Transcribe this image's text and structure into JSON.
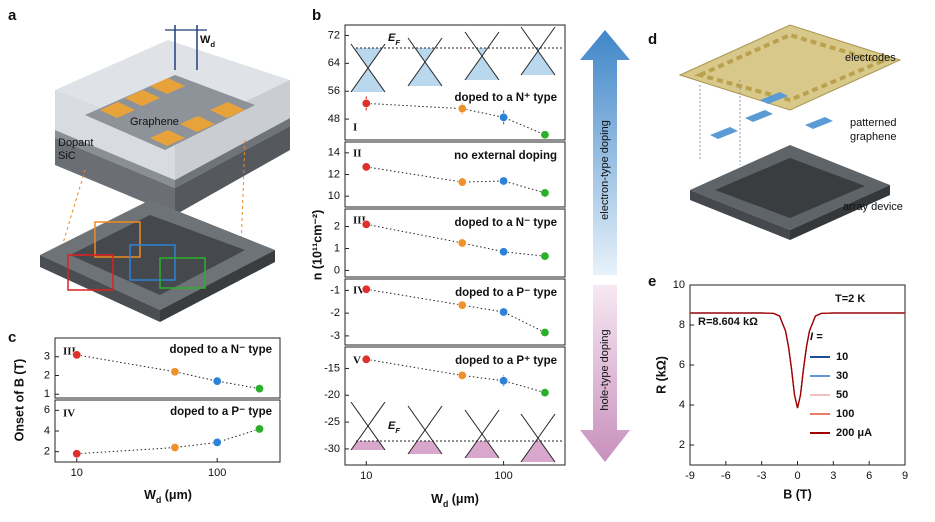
{
  "figure": {
    "panel_letters": [
      "a",
      "b",
      "c",
      "d",
      "e"
    ],
    "a": {
      "width_label": [
        "W",
        "d"
      ],
      "layer_labels": [
        "Dopant",
        "SiC"
      ],
      "graphene_label": "Graphene"
    },
    "b": {
      "y_label": "n (10¹¹cm⁻²)",
      "x_label": [
        "W",
        "d",
        " (μm)"
      ],
      "fermi_label": [
        "E",
        "F"
      ],
      "arrow_labels": [
        "electron-type doping",
        "hole-type doping"
      ]
    },
    "c": {
      "y_label": "Onset of B (T)",
      "x_label": [
        "W",
        "d",
        " (μm)"
      ]
    },
    "d": {
      "electrodes": "electrodes",
      "patterned": [
        "patterned",
        "graphene"
      ],
      "array": "array device"
    }
  },
  "chart_data": [
    {
      "type": "scatter",
      "label": "I",
      "annotation": "doped to a N⁺ type",
      "x": [
        10,
        50,
        100,
        200
      ],
      "values": [
        52.5,
        51,
        48.5,
        43.5
      ],
      "errors": [
        2,
        1.5,
        2,
        0.5
      ],
      "point_colors": [
        "#e0302c",
        "#f0902c",
        "#2c82d8",
        "#2cb02c"
      ],
      "xscale": "log",
      "xlim": [
        7,
        280
      ],
      "ylim": [
        42,
        75
      ],
      "yticks": [
        48,
        56,
        64,
        72
      ]
    },
    {
      "type": "scatter",
      "label": "II",
      "annotation": "no external doping",
      "x": [
        10,
        50,
        100,
        200
      ],
      "values": [
        12.7,
        11.3,
        11.4,
        10.3
      ],
      "errors": [
        0.15,
        0.15,
        0.3,
        0.2
      ],
      "point_colors": [
        "#e0302c",
        "#f0902c",
        "#2c82d8",
        "#2cb02c"
      ],
      "xscale": "log",
      "xlim": [
        7,
        280
      ],
      "ylim": [
        9,
        15
      ],
      "yticks": [
        10,
        12,
        14
      ]
    },
    {
      "type": "scatter",
      "label": "III",
      "annotation": "doped to a N⁻ type",
      "x": [
        10,
        50,
        100,
        200
      ],
      "values": [
        2.1,
        1.25,
        0.85,
        0.65
      ],
      "errors": [
        0.05,
        0.05,
        0.1,
        0.05
      ],
      "point_colors": [
        "#e0302c",
        "#f0902c",
        "#2c82d8",
        "#2cb02c"
      ],
      "xscale": "log",
      "xlim": [
        7,
        280
      ],
      "ylim": [
        -0.3,
        2.8
      ],
      "yticks": [
        0,
        1,
        2
      ]
    },
    {
      "type": "scatter",
      "label": "IV",
      "annotation": "doped to a P⁻ type",
      "x": [
        10,
        50,
        100,
        200
      ],
      "values": [
        -0.95,
        -1.65,
        -1.95,
        -2.85
      ],
      "errors": [
        0.05,
        0.05,
        0.1,
        0.05
      ],
      "point_colors": [
        "#e0302c",
        "#f0902c",
        "#2c82d8",
        "#2cb02c"
      ],
      "xscale": "log",
      "xlim": [
        7,
        280
      ],
      "ylim": [
        -3.4,
        -0.5
      ],
      "yticks": [
        -1,
        -2,
        -3
      ]
    },
    {
      "type": "scatter",
      "label": "V",
      "annotation": "doped to a P⁺ type",
      "x": [
        10,
        50,
        100,
        200
      ],
      "values": [
        -13.3,
        -16.3,
        -17.3,
        -19.5
      ],
      "errors": [
        0.4,
        0.6,
        1,
        0.3
      ],
      "point_colors": [
        "#e0302c",
        "#f0902c",
        "#2c82d8",
        "#2cb02c"
      ],
      "xscale": "log",
      "xlim": [
        7,
        280
      ],
      "ylim": [
        -33,
        -11
      ],
      "yticks": [
        -15,
        -20,
        -25,
        -30
      ],
      "xticks": [
        10,
        100
      ]
    },
    {
      "type": "scatter",
      "label": "III",
      "annotation": "doped to a N⁻ type",
      "x": [
        10,
        50,
        100,
        200
      ],
      "values": [
        3.1,
        2.2,
        1.7,
        1.3
      ],
      "point_colors": [
        "#e0302c",
        "#f0902c",
        "#2c82d8",
        "#2cb02c"
      ],
      "xscale": "log",
      "xlim": [
        7,
        280
      ],
      "ylim": [
        0.8,
        4
      ],
      "yticks": [
        1,
        2,
        3
      ]
    },
    {
      "type": "scatter",
      "label": "IV",
      "annotation": "doped to a P⁻ type",
      "x": [
        10,
        50,
        100,
        200
      ],
      "values": [
        1.8,
        2.4,
        2.9,
        4.2
      ],
      "point_colors": [
        "#e0302c",
        "#f0902c",
        "#2c82d8",
        "#2cb02c"
      ],
      "xscale": "log",
      "xlim": [
        7,
        280
      ],
      "ylim": [
        1,
        7
      ],
      "yticks": [
        2,
        4,
        6
      ],
      "xticks": [
        10,
        100
      ]
    },
    {
      "type": "line",
      "x_label": "B (T)",
      "y_label": "R (kΩ)",
      "annotations": [
        "T=2 K",
        "R=8.604 kΩ"
      ],
      "legend_title": "I =",
      "x": [
        -9,
        -3,
        -2,
        -1.5,
        -1,
        -0.75,
        -0.5,
        -0.25,
        0,
        0.25,
        0.5,
        0.75,
        1,
        1.5,
        2,
        3,
        9
      ],
      "series": [
        {
          "name": "10",
          "color": "#1f4e9c",
          "values": [
            8.6,
            8.6,
            8.58,
            8.45,
            7.7,
            6.9,
            5.8,
            4.5,
            3.85,
            4.5,
            5.8,
            6.9,
            7.7,
            8.45,
            8.58,
            8.6,
            8.6
          ]
        },
        {
          "name": "30",
          "color": "#5b9bd5",
          "values": [
            8.6,
            8.6,
            8.58,
            8.45,
            7.7,
            6.9,
            5.8,
            4.5,
            3.85,
            4.5,
            5.8,
            6.9,
            7.7,
            8.45,
            8.58,
            8.6,
            8.6
          ]
        },
        {
          "name": "50",
          "color": "#f4c0c0",
          "values": [
            8.6,
            8.6,
            8.58,
            8.45,
            7.7,
            6.9,
            5.8,
            4.5,
            3.85,
            4.5,
            5.8,
            6.9,
            7.7,
            8.45,
            8.58,
            8.6,
            8.6
          ]
        },
        {
          "name": "100",
          "color": "#f07a6a",
          "values": [
            8.6,
            8.6,
            8.58,
            8.45,
            7.7,
            6.9,
            5.8,
            4.5,
            3.85,
            4.5,
            5.8,
            6.9,
            7.7,
            8.45,
            8.58,
            8.6,
            8.6
          ]
        },
        {
          "name": "200 μA",
          "color": "#a00000",
          "values": [
            8.6,
            8.6,
            8.58,
            8.45,
            7.7,
            6.9,
            5.8,
            4.5,
            3.85,
            4.5,
            5.8,
            6.9,
            7.7,
            8.45,
            8.58,
            8.6,
            8.6
          ]
        }
      ],
      "xlim": [
        -9,
        9
      ],
      "xticks": [
        -9,
        -6,
        -3,
        0,
        3,
        6,
        9
      ],
      "ylim": [
        1,
        10
      ],
      "yticks": [
        2,
        4,
        6,
        8,
        10
      ]
    }
  ]
}
